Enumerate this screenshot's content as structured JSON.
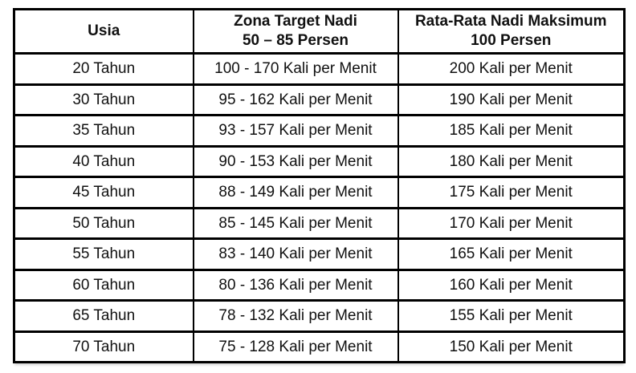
{
  "table": {
    "name": "heart-rate-target-zone-table",
    "headers": [
      {
        "lines": [
          "Usia",
          ""
        ]
      },
      {
        "lines": [
          "Zona Target Nadi",
          "50 – 85 Persen"
        ]
      },
      {
        "lines": [
          "Rata-Rata Nadi Maksimum",
          "100 Persen"
        ]
      }
    ],
    "rows": [
      {
        "usia": "20 Tahun",
        "zona": "100 - 170 Kali per Menit",
        "maks": "200 Kali per Menit"
      },
      {
        "usia": "30 Tahun",
        "zona": "95 - 162 Kali per Menit",
        "maks": "190 Kali per Menit"
      },
      {
        "usia": "35 Tahun",
        "zona": "93 - 157 Kali per Menit",
        "maks": "185 Kali per Menit"
      },
      {
        "usia": "40 Tahun",
        "zona": "90 - 153 Kali per Menit",
        "maks": "180 Kali per Menit"
      },
      {
        "usia": "45 Tahun",
        "zona": "88 - 149 Kali per Menit",
        "maks": "175 Kali per Menit"
      },
      {
        "usia": "50 Tahun",
        "zona": "85 - 145 Kali per Menit",
        "maks": "170 Kali per Menit"
      },
      {
        "usia": "55 Tahun",
        "zona": "83 - 140 Kali per Menit",
        "maks": "165 Kali per Menit"
      },
      {
        "usia": "60 Tahun",
        "zona": "80 - 136 Kali per Menit",
        "maks": "160 Kali per Menit"
      },
      {
        "usia": "65 Tahun",
        "zona": "78 - 132 Kali per Menit",
        "maks": "155 Kali per Menit"
      },
      {
        "usia": "70 Tahun",
        "zona": "75 - 128 Kali per Menit",
        "maks": "150 Kali per Menit"
      }
    ],
    "colors": {
      "border": "#000000",
      "text": "#111111",
      "background": "#ffffff"
    }
  }
}
